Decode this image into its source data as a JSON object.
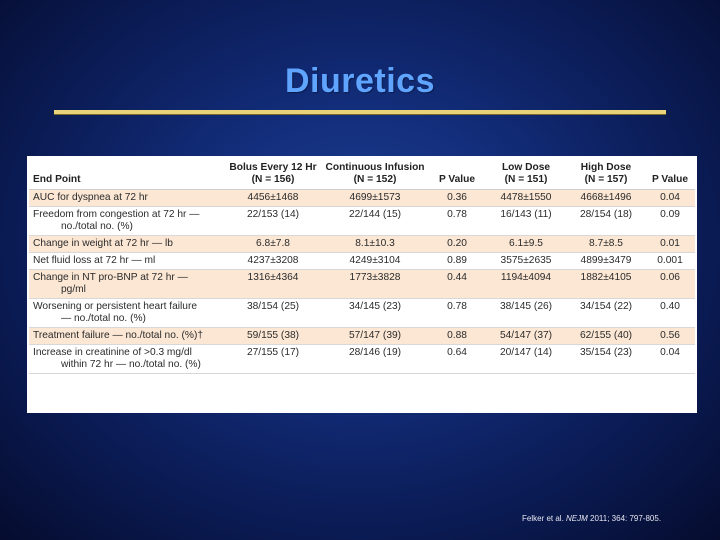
{
  "slide": {
    "title": "Diuretics"
  },
  "table": {
    "columns": [
      {
        "lines": [
          "End Point"
        ]
      },
      {
        "lines": [
          "Bolus Every 12 Hr",
          "(N = 156)"
        ]
      },
      {
        "lines": [
          "Continuous Infusion",
          "(N = 152)"
        ]
      },
      {
        "lines": [
          "P Value"
        ]
      },
      {
        "lines": [
          "Low Dose",
          "(N = 151)"
        ]
      },
      {
        "lines": [
          "High Dose",
          "(N = 157)"
        ]
      },
      {
        "lines": [
          "P Value"
        ]
      }
    ],
    "rows": [
      {
        "endpoint": [
          "AUC for dyspnea at 72 hr"
        ],
        "values": [
          "4456±1468",
          "4699±1573",
          "0.36",
          "4478±1550",
          "4668±1496",
          "0.04"
        ]
      },
      {
        "endpoint": [
          "Freedom from congestion at 72 hr —",
          "no./total no. (%)"
        ],
        "values": [
          "22/153 (14)",
          "22/144 (15)",
          "0.78",
          "16/143 (11)",
          "28/154 (18)",
          "0.09"
        ]
      },
      {
        "endpoint": [
          "Change in weight at 72 hr — lb"
        ],
        "values": [
          "6.8±7.8",
          "8.1±10.3",
          "0.20",
          "6.1±9.5",
          "8.7±8.5",
          "0.01"
        ]
      },
      {
        "endpoint": [
          "Net fluid loss at 72 hr — ml"
        ],
        "values": [
          "4237±3208",
          "4249±3104",
          "0.89",
          "3575±2635",
          "4899±3479",
          "0.001"
        ]
      },
      {
        "endpoint": [
          "Change in NT pro-BNP at 72 hr —",
          "pg/ml"
        ],
        "values": [
          "1316±4364",
          "1773±3828",
          "0.44",
          "1194±4094",
          "1882±4105",
          "0.06"
        ]
      },
      {
        "endpoint": [
          "Worsening or persistent heart failure",
          "— no./total no. (%)"
        ],
        "values": [
          "38/154 (25)",
          "34/145 (23)",
          "0.78",
          "38/145 (26)",
          "34/154 (22)",
          "0.40"
        ]
      },
      {
        "endpoint": [
          "Treatment failure — no./total no. (%)†"
        ],
        "values": [
          "59/155 (38)",
          "57/147 (39)",
          "0.88",
          "54/147 (37)",
          "62/155 (40)",
          "0.56"
        ]
      },
      {
        "endpoint": [
          "Increase in creatinine of >0.3 mg/dl",
          "within 72 hr — no./total no. (%)"
        ],
        "values": [
          "27/155 (17)",
          "28/146 (19)",
          "0.64",
          "20/147 (14)",
          "35/154 (23)",
          "0.04"
        ]
      }
    ]
  },
  "citation": {
    "authors": "Felker et al. ",
    "journal": "NEJM",
    "rest": " 2011; 364: 797-805."
  }
}
